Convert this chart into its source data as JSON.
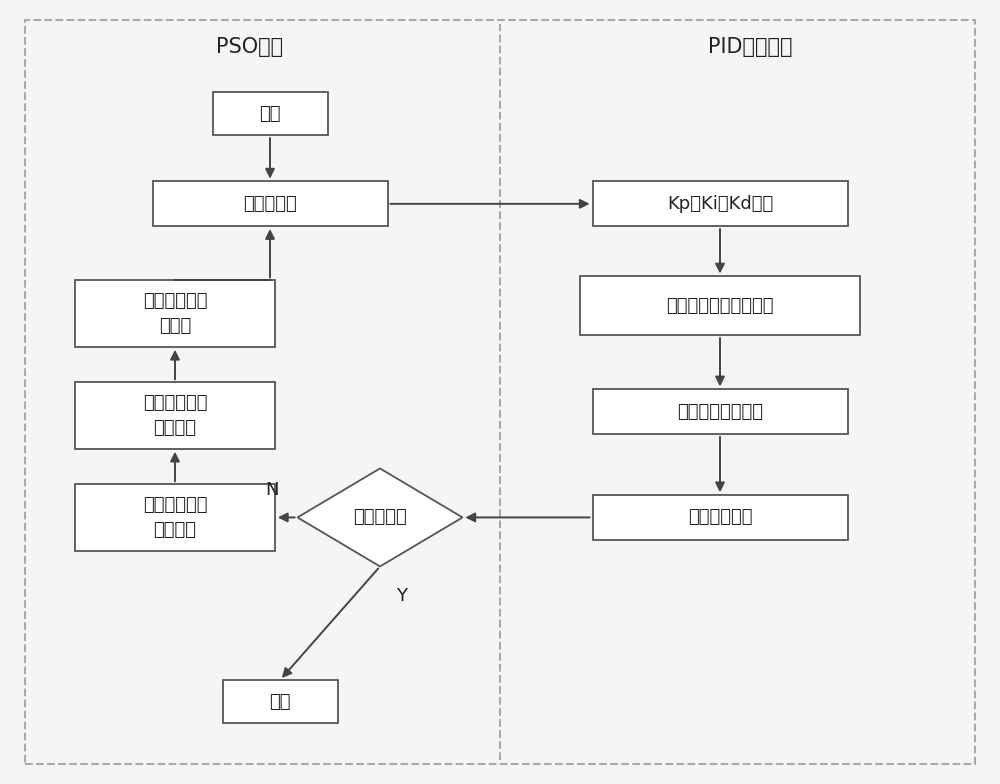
{
  "title_left": "PSO算法",
  "title_right": "PID控制策略",
  "bg_color": "#f5f5f5",
  "box_bg": "#ffffff",
  "box_edge": "#555555",
  "arrow_color": "#444444",
  "text_color": "#222222",
  "border_color": "#aaaaaa",
  "divider_color": "#aaaaaa",
  "font_size": 13,
  "title_font_size": 15,
  "start_text": "开始",
  "end_text": "结束",
  "pso_param_text": "粒子群参数",
  "vel_text": "更新粒子速度\n和位置",
  "gbest_text": "更新粒子全体\n最优位置",
  "pbest_text": "更新粒子个体\n最优位置",
  "diamond_text": "收敛精度？",
  "kp_text": "Kp、Ki、Kd赋値",
  "transfer_text": "被控系统传递函数模型",
  "fitness_text": "适应度函数値计算",
  "compare_text": "性能结果比较",
  "N_label": "N",
  "Y_label": "Y"
}
